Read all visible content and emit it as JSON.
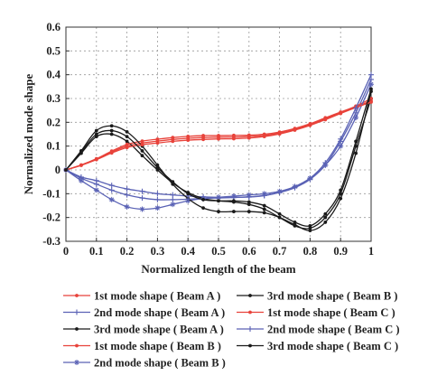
{
  "chart_data": {
    "type": "line",
    "title": "",
    "xlabel": "Normalized length of the beam",
    "ylabel": "Normalized mode shape",
    "xlim": [
      0,
      1
    ],
    "ylim": [
      -0.3,
      0.6
    ],
    "xticks": [
      "0",
      "0.1",
      "0.2",
      "0.3",
      "0.4",
      "0.5",
      "0.6",
      "0.7",
      "0.8",
      "0.9",
      "1"
    ],
    "yticks": [
      "-0.3",
      "-0.2",
      "-0.1",
      "0",
      "0.1",
      "0.2",
      "0.3",
      "0.4",
      "0.5",
      "0.6"
    ],
    "grid": true,
    "legend_position": "bottom",
    "x": [
      0,
      0.05,
      0.1,
      0.15,
      0.2,
      0.25,
      0.3,
      0.35,
      0.4,
      0.45,
      0.5,
      0.55,
      0.6,
      0.65,
      0.7,
      0.75,
      0.8,
      0.85,
      0.9,
      0.95,
      1.0
    ],
    "series": [
      {
        "name": "1st mode shape ( Beam A )",
        "color": "#e8423a",
        "marker": "dot",
        "values": [
          0,
          0.02,
          0.045,
          0.075,
          0.1,
          0.113,
          0.121,
          0.128,
          0.133,
          0.136,
          0.137,
          0.138,
          0.14,
          0.145,
          0.155,
          0.17,
          0.19,
          0.215,
          0.24,
          0.265,
          0.29
        ]
      },
      {
        "name": "2nd mode shape ( Beam A )",
        "color": "#5a62b5",
        "marker": "plus",
        "values": [
          0,
          -0.03,
          -0.045,
          -0.065,
          -0.08,
          -0.09,
          -0.1,
          -0.105,
          -0.11,
          -0.113,
          -0.115,
          -0.115,
          -0.113,
          -0.108,
          -0.095,
          -0.075,
          -0.04,
          0.02,
          0.12,
          0.24,
          0.38
        ]
      },
      {
        "name": "3rd mode shape ( Beam A )",
        "color": "#1a1a1a",
        "marker": "dot",
        "values": [
          0,
          0.07,
          0.14,
          0.15,
          0.12,
          0.06,
          0.0,
          -0.055,
          -0.095,
          -0.12,
          -0.13,
          -0.135,
          -0.145,
          -0.165,
          -0.2,
          -0.235,
          -0.245,
          -0.2,
          -0.1,
          0.1,
          0.3
        ]
      },
      {
        "name": "1st mode shape ( Beam B )",
        "color": "#e8423a",
        "marker": "dot",
        "values": [
          0,
          0.021,
          0.047,
          0.079,
          0.107,
          0.121,
          0.129,
          0.136,
          0.141,
          0.144,
          0.144,
          0.145,
          0.146,
          0.15,
          0.159,
          0.174,
          0.194,
          0.219,
          0.243,
          0.268,
          0.3
        ]
      },
      {
        "name": "2nd mode shape ( Beam B )",
        "color": "#5a62b5",
        "marker": "star",
        "values": [
          0,
          -0.045,
          -0.085,
          -0.125,
          -0.155,
          -0.165,
          -0.16,
          -0.145,
          -0.13,
          -0.12,
          -0.115,
          -0.11,
          -0.105,
          -0.1,
          -0.09,
          -0.07,
          -0.035,
          0.02,
          0.1,
          0.22,
          0.36
        ]
      },
      {
        "name": "3rd mode shape ( Beam B )",
        "color": "#1a1a1a",
        "marker": "dot",
        "values": [
          0,
          0.08,
          0.165,
          0.185,
          0.16,
          0.1,
          0.02,
          -0.06,
          -0.12,
          -0.16,
          -0.175,
          -0.175,
          -0.175,
          -0.18,
          -0.2,
          -0.23,
          -0.255,
          -0.22,
          -0.12,
          0.07,
          0.33
        ]
      },
      {
        "name": "1st mode shape ( Beam C )",
        "color": "#e8423a",
        "marker": "dot",
        "values": [
          0,
          0.019,
          0.043,
          0.071,
          0.094,
          0.106,
          0.113,
          0.12,
          0.125,
          0.128,
          0.13,
          0.131,
          0.134,
          0.14,
          0.151,
          0.167,
          0.187,
          0.211,
          0.237,
          0.262,
          0.285
        ]
      },
      {
        "name": "2nd mode shape ( Beam C )",
        "color": "#5a62b5",
        "marker": "plus",
        "values": [
          0,
          -0.035,
          -0.06,
          -0.085,
          -0.105,
          -0.118,
          -0.125,
          -0.125,
          -0.123,
          -0.12,
          -0.118,
          -0.116,
          -0.114,
          -0.108,
          -0.094,
          -0.072,
          -0.035,
          0.03,
          0.13,
          0.26,
          0.4
        ]
      },
      {
        "name": "3rd mode shape ( Beam C )",
        "color": "#1a1a1a",
        "marker": "dot",
        "values": [
          0,
          0.075,
          0.15,
          0.165,
          0.14,
          0.08,
          0.01,
          -0.05,
          -0.1,
          -0.125,
          -0.13,
          -0.13,
          -0.135,
          -0.15,
          -0.185,
          -0.22,
          -0.235,
          -0.185,
          -0.085,
          0.12,
          0.34
        ]
      }
    ],
    "legend_columns": [
      [
        0,
        1,
        2,
        3,
        4
      ],
      [
        5,
        6,
        7,
        8
      ]
    ]
  }
}
